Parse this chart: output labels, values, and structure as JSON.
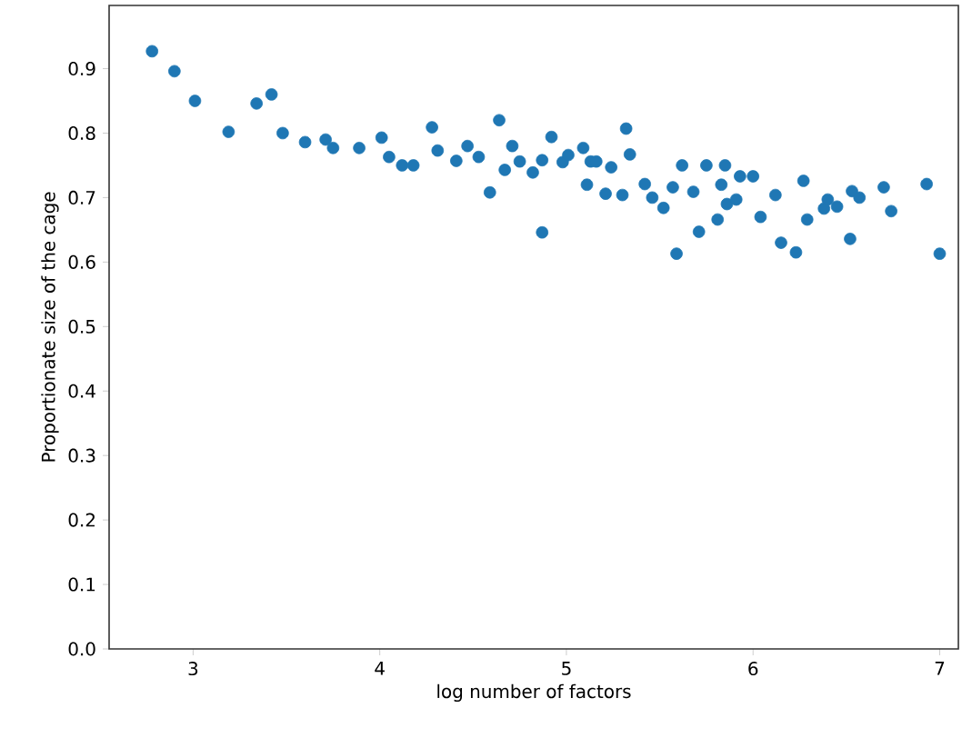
{
  "chart_data": {
    "type": "scatter",
    "xlabel": "log number of factors",
    "ylabel": "Proportionate size of the cage",
    "xlim": [
      2.55,
      7.1
    ],
    "ylim": [
      0,
      0.998
    ],
    "xticks": [
      3,
      4,
      5,
      6,
      7
    ],
    "yticks": [
      {
        "value": 0,
        "label": "0.0"
      },
      0.1,
      0.2,
      0.3,
      0.4,
      0.5,
      0.6,
      0.7,
      0.8,
      0.9
    ],
    "grid": false,
    "series": [
      {
        "color": "#1f77b4",
        "x": [
          2.78,
          2.9,
          3.01,
          3.19,
          3.34,
          3.42,
          3.48,
          3.6,
          3.71,
          3.75,
          3.89,
          4.01,
          4.05,
          4.12,
          4.18,
          4.28,
          4.31,
          4.41,
          4.47,
          4.53,
          4.59,
          4.64,
          4.67,
          4.71,
          4.75,
          4.82,
          4.87,
          4.87,
          4.92,
          4.98,
          5.01,
          5.09,
          5.11,
          5.13,
          5.16,
          5.24,
          5.21,
          5.3,
          5.32,
          5.34,
          5.42,
          5.46,
          5.52,
          5.59,
          5.57,
          5.62,
          5.68,
          5.71,
          5.75,
          5.81,
          5.83,
          5.85,
          5.86,
          5.91,
          5.93,
          6.0,
          6.04,
          6.12,
          6.15,
          6.23,
          6.27,
          6.29,
          6.38,
          6.4,
          6.45,
          6.52,
          6.53,
          6.57,
          6.7,
          6.74,
          6.93,
          7.0
        ],
        "values": [
          0.927,
          0.896,
          0.85,
          0.802,
          0.846,
          0.86,
          0.8,
          0.786,
          0.79,
          0.777,
          0.777,
          0.793,
          0.763,
          0.75,
          0.75,
          0.809,
          0.773,
          0.757,
          0.78,
          0.763,
          0.708,
          0.82,
          0.743,
          0.78,
          0.756,
          0.739,
          0.646,
          0.758,
          0.794,
          0.755,
          0.766,
          0.777,
          0.72,
          0.756,
          0.756,
          0.747,
          0.706,
          0.704,
          0.807,
          0.767,
          0.721,
          0.7,
          0.684,
          0.613,
          0.716,
          0.75,
          0.709,
          0.647,
          0.75,
          0.666,
          0.72,
          0.75,
          0.69,
          0.697,
          0.733,
          0.733,
          0.67,
          0.704,
          0.63,
          0.615,
          0.726,
          0.666,
          0.683,
          0.697,
          0.686,
          0.636,
          0.71,
          0.7,
          0.716,
          0.679,
          0.721,
          0.613
        ]
      }
    ]
  }
}
